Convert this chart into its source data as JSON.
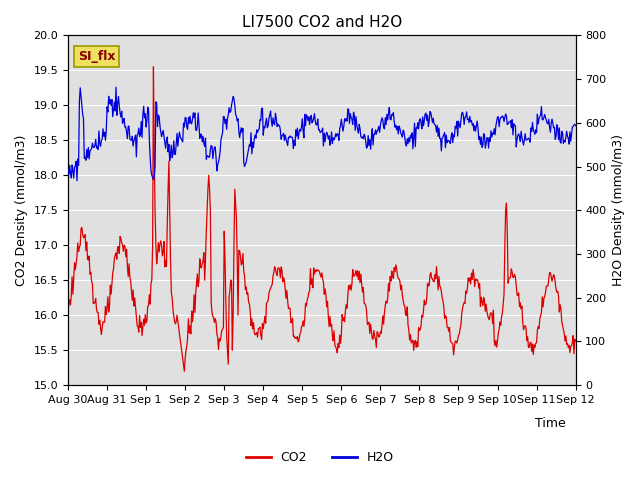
{
  "title": "LI7500 CO2 and H2O",
  "xlabel": "Time",
  "ylabel_left": "CO2 Density (mmol/m3)",
  "ylabel_right": "H2O Density (mmol/m3)",
  "ylim_left": [
    15.0,
    20.0
  ],
  "ylim_right": [
    0,
    800
  ],
  "yticks_left": [
    15.0,
    15.5,
    16.0,
    16.5,
    17.0,
    17.5,
    18.0,
    18.5,
    19.0,
    19.5,
    20.0
  ],
  "yticks_right": [
    0,
    100,
    200,
    300,
    400,
    500,
    600,
    700,
    800
  ],
  "co2_color": "#DD0000",
  "h2o_color": "#0000DD",
  "background_color": "#E0E0E0",
  "fig_background": "#FFFFFF",
  "annotation_text": "SI_flx",
  "annotation_color": "#8B0000",
  "annotation_bg": "#F0E060",
  "legend_co2": "CO2",
  "legend_h2o": "H2O",
  "title_fontsize": 11,
  "axis_fontsize": 9,
  "tick_fontsize": 8,
  "legend_fontsize": 9,
  "line_width": 0.9
}
